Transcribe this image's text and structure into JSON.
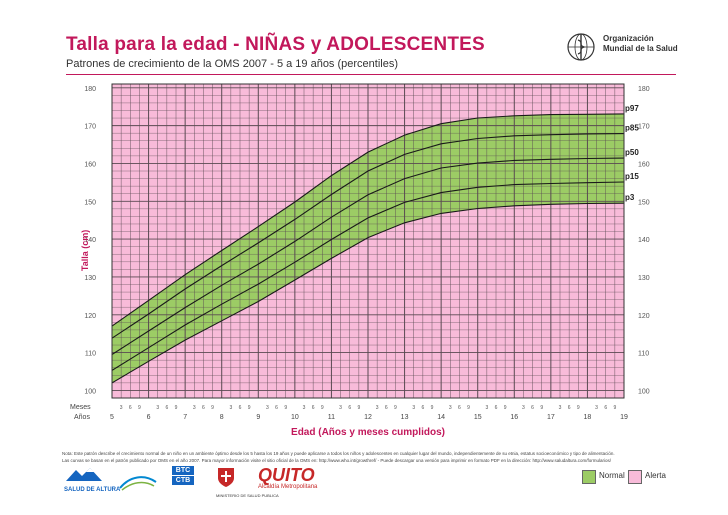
{
  "header": {
    "title": "Talla para la edad - NIÑAS y  ADOLESCENTES",
    "subtitle": "Patrones de crecimiento de la OMS 2007 - 5 a 19 años (percentiles)",
    "org_line1": "Organización",
    "org_line2": "Mundial de la Salud"
  },
  "row_labels": {
    "months": "Meses",
    "years": "Años"
  },
  "month_marks": [
    "3",
    "6",
    "9"
  ],
  "footnote": {
    "line1": "Nota: Este patrón describe el crecimiento normal de un niño en un ambiente óptimo desde los 5 hasta los 19 años y puede aplicarse a todos los niños y adolescentes en cualquier lugar del mundo, independientemente de su etnia, estatus socioeconómico y tipo de alimentación.",
    "line2": "Las curvas se basan en el patrón publicado por OMS en el año 2007. Para mayor información visite el sitio oficial de la OMS en: http://www.who.int/growthref/ - Puede descargar una versión para imprimir en formato PDF en la dirección: http://www.saludaltura.com/formularios/"
  },
  "legend": {
    "normal_label": "Normal",
    "alerta_label": "Alerta",
    "normal_color": "#9ccc65",
    "alerta_color": "#f8bbd9"
  },
  "logos": {
    "salud_altura": "SALUD DE ALTURA",
    "btc": "BTC",
    "ctb": "CTB",
    "ministerio": "MINISTERIO DE SALUD PUBLICA",
    "quito": "QUITO",
    "alcaldia": "Alcaldía Metropolitana"
  },
  "chart_data": {
    "type": "line",
    "title": "Talla para la edad - NIÑAS y  ADOLESCENTES",
    "xlabel": "Edad (Años y meses cumplidos)",
    "ylabel": "Talla (cm)",
    "xlim": [
      5,
      19
    ],
    "ylim": [
      98,
      181
    ],
    "x_ticks": [
      5,
      6,
      7,
      8,
      9,
      10,
      11,
      12,
      13,
      14,
      15,
      16,
      17,
      18,
      19
    ],
    "y_ticks": [
      100,
      110,
      120,
      130,
      140,
      150,
      160,
      170,
      180
    ],
    "grid": true,
    "band_between": [
      "p3",
      "p97"
    ],
    "colors": {
      "normal_band": "#9ccc65",
      "alert_background": "#f8bbd9",
      "curve": "#1a1a1a",
      "grid": "#5a4a52",
      "accent": "#c2185b"
    },
    "x": [
      5,
      6,
      7,
      8,
      9,
      10,
      11,
      12,
      13,
      14,
      15,
      16,
      17,
      18,
      19
    ],
    "series": [
      {
        "name": "p97",
        "values": [
          117.0,
          123.8,
          130.6,
          137.0,
          143.3,
          149.8,
          156.8,
          163.0,
          167.5,
          170.5,
          172.0,
          172.6,
          172.9,
          173.0,
          173.1
        ]
      },
      {
        "name": "p85",
        "values": [
          113.8,
          120.2,
          126.8,
          133.0,
          139.0,
          145.2,
          151.8,
          158.0,
          162.4,
          165.2,
          166.6,
          167.3,
          167.6,
          167.8,
          167.9
        ]
      },
      {
        "name": "p50",
        "values": [
          109.5,
          115.7,
          121.9,
          127.8,
          133.4,
          139.4,
          145.8,
          151.7,
          156.0,
          158.8,
          160.1,
          160.8,
          161.1,
          161.3,
          161.4
        ]
      },
      {
        "name": "p15",
        "values": [
          105.3,
          111.3,
          117.3,
          122.8,
          128.1,
          133.9,
          139.9,
          145.6,
          149.7,
          152.3,
          153.7,
          154.4,
          154.7,
          154.9,
          155.1
        ]
      },
      {
        "name": "p3",
        "values": [
          102.0,
          107.7,
          113.3,
          118.4,
          123.5,
          129.2,
          134.9,
          140.4,
          144.3,
          146.8,
          148.1,
          148.8,
          149.2,
          149.4,
          149.5
        ]
      }
    ]
  }
}
